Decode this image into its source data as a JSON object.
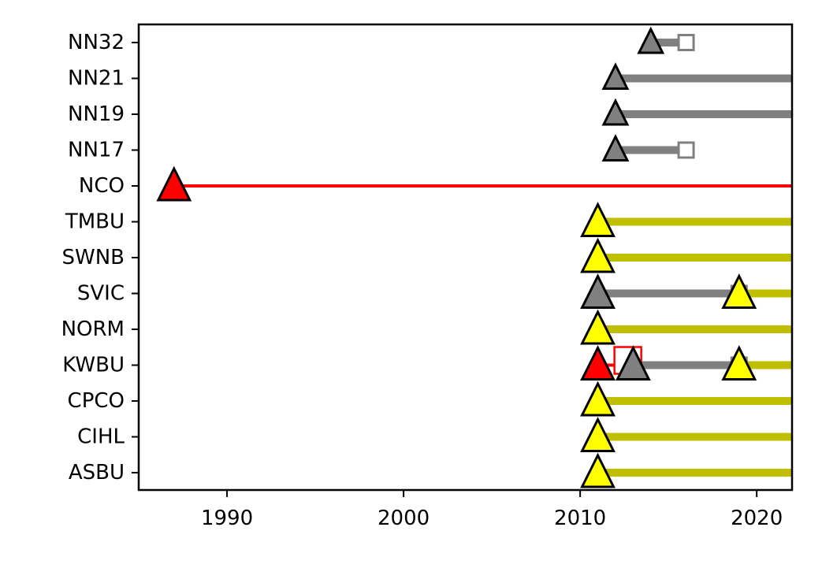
{
  "chart_data": {
    "type": "timeline",
    "title": "",
    "xlabel": "",
    "ylabel": "",
    "xlim": [
      1985,
      2022
    ],
    "xticks": [
      1990,
      2000,
      2010,
      2020
    ],
    "xtick_labels": [
      "1990",
      "2000",
      "2010",
      "2020"
    ],
    "stations": [
      "ASBU",
      "CIHL",
      "CPCO",
      "KWBU",
      "NORM",
      "SVIC",
      "SWNB",
      "TMBU",
      "NCO",
      "NN17",
      "NN19",
      "NN21",
      "NN32"
    ],
    "colors": {
      "yellow_line": "#bfbf00",
      "yellow_marker": "#ffff00",
      "gray": "#808080",
      "red": "#ff0000",
      "marker_edge": "#000000"
    },
    "segments": [
      {
        "station": "ASBU",
        "start": 2011,
        "end": 2022,
        "color": "yellow",
        "end_open": true
      },
      {
        "station": "CIHL",
        "start": 2011,
        "end": 2022,
        "color": "yellow",
        "end_open": true
      },
      {
        "station": "CPCO",
        "start": 2011,
        "end": 2022,
        "color": "yellow",
        "end_open": true
      },
      {
        "station": "KWBU",
        "start": 2011,
        "end": 2012.7,
        "color": "red",
        "end_marker": true
      },
      {
        "station": "KWBU",
        "start": 2013,
        "end": 2019,
        "color": "gray",
        "end_marker": true
      },
      {
        "station": "KWBU",
        "start": 2019,
        "end": 2022,
        "color": "yellow",
        "end_open": true
      },
      {
        "station": "NORM",
        "start": 2011,
        "end": 2022,
        "color": "yellow",
        "end_open": true
      },
      {
        "station": "SVIC",
        "start": 2011,
        "end": 2019,
        "color": "gray",
        "end_marker": true
      },
      {
        "station": "SVIC",
        "start": 2019,
        "end": 2022,
        "color": "yellow",
        "end_open": true
      },
      {
        "station": "SWNB",
        "start": 2011,
        "end": 2022,
        "color": "yellow",
        "end_open": true
      },
      {
        "station": "TMBU",
        "start": 2011,
        "end": 2022,
        "color": "yellow",
        "end_open": true
      },
      {
        "station": "NCO",
        "start": 1987,
        "end": 2022,
        "color": "red",
        "end_open": true
      },
      {
        "station": "NN17",
        "start": 2012,
        "end": 2016,
        "color": "gray",
        "end_marker": true
      },
      {
        "station": "NN19",
        "start": 2012,
        "end": 2022,
        "color": "gray",
        "end_open": true
      },
      {
        "station": "NN21",
        "start": 2012,
        "end": 2022,
        "color": "gray",
        "end_open": true
      },
      {
        "station": "NN32",
        "start": 2014,
        "end": 2016,
        "color": "gray",
        "end_marker": true
      }
    ]
  }
}
